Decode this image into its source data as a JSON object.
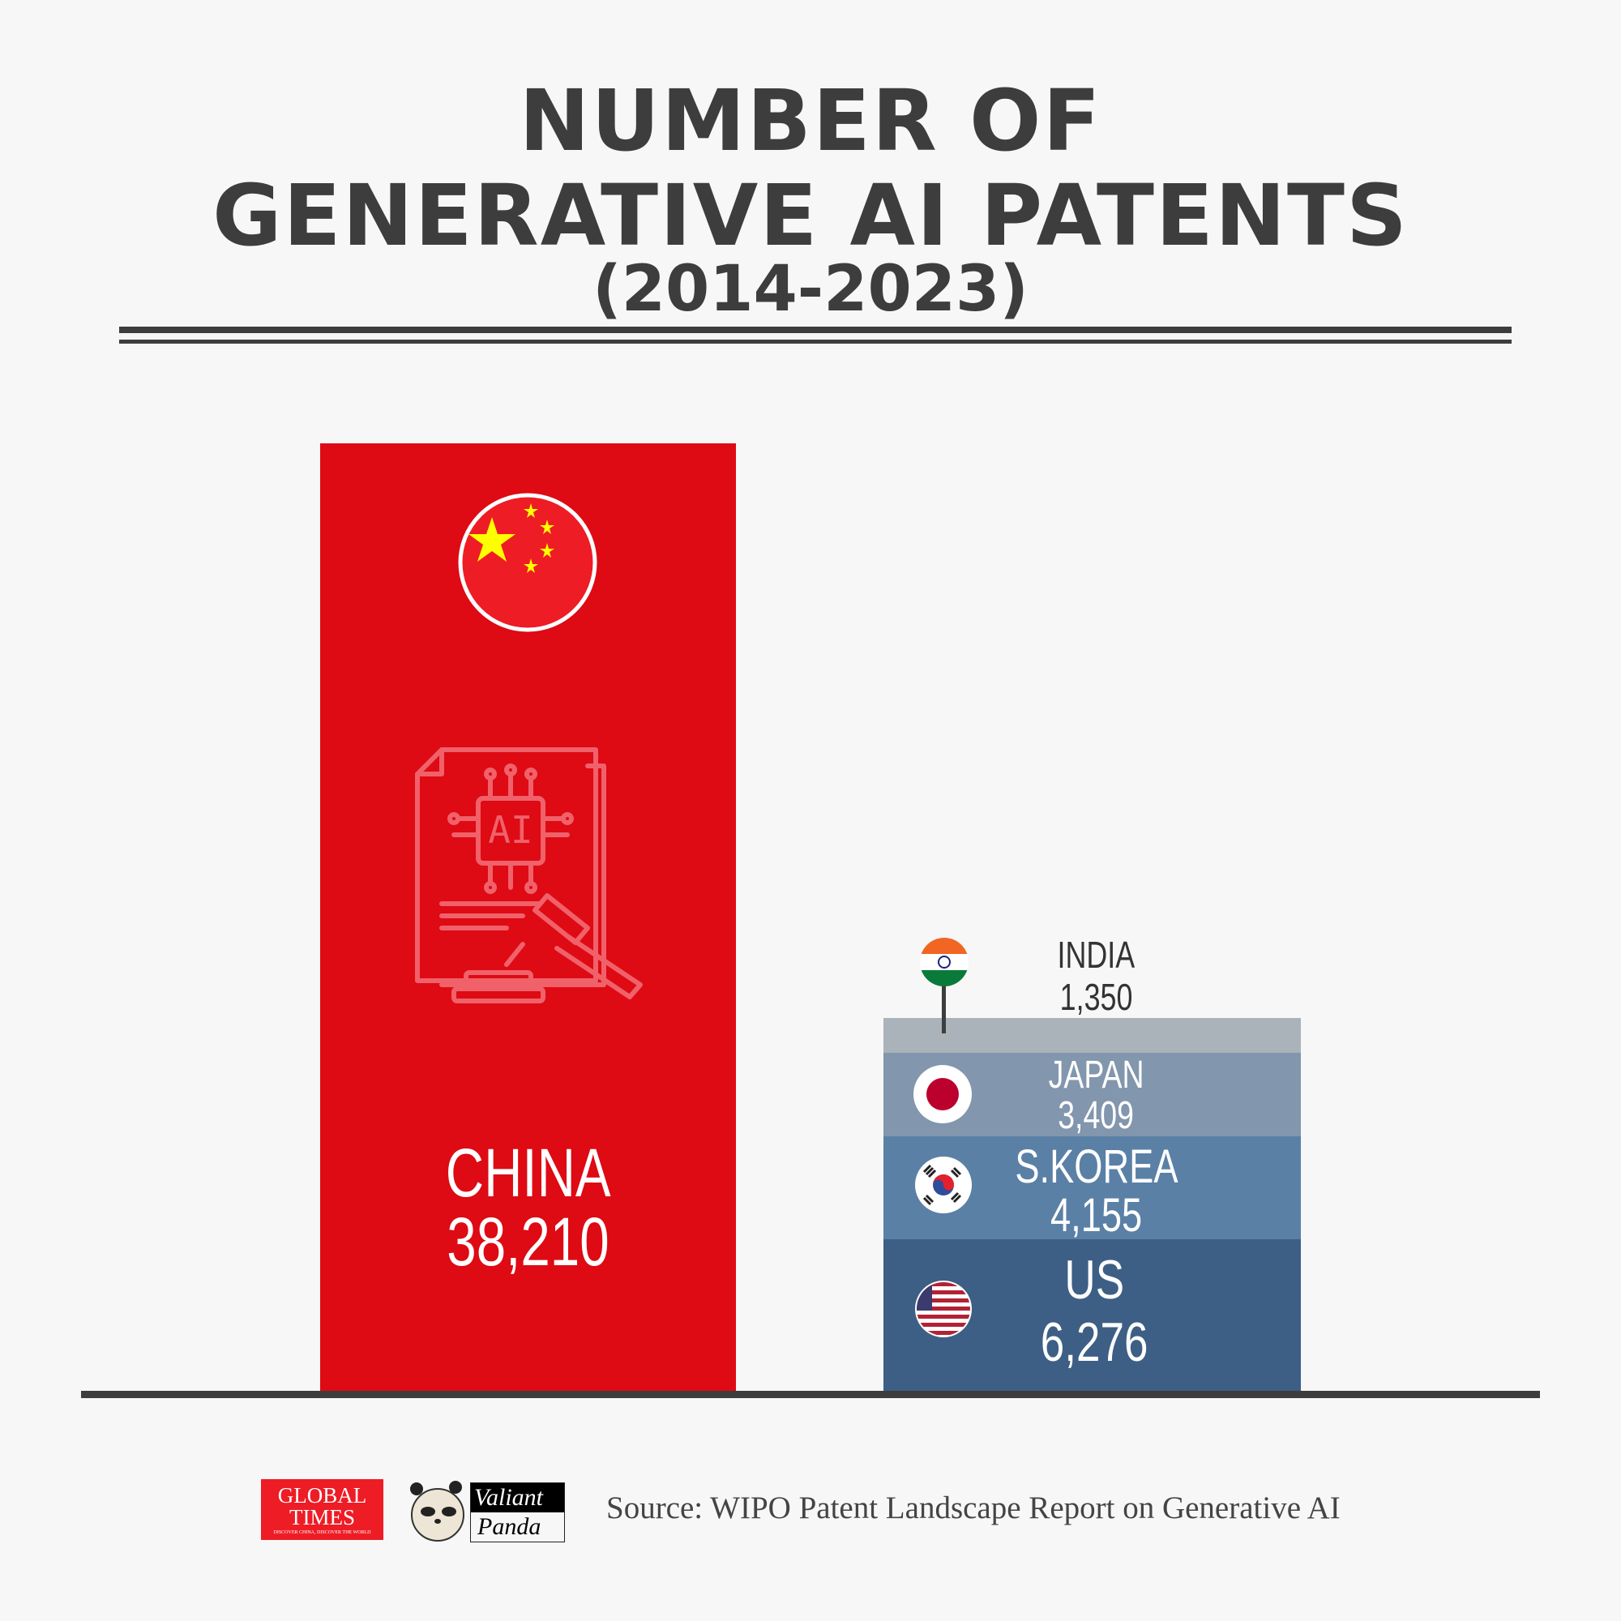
{
  "title": {
    "line1": "NUMBER OF",
    "line2": "GENERATIVE AI PATENTS",
    "line3": "(2014-2023)"
  },
  "chart_data": {
    "type": "bar",
    "title": "NUMBER OF GENERATIVE AI PATENTS (2014-2023)",
    "bars": [
      {
        "category": "CHINA",
        "value": 38210,
        "value_label": "38,210",
        "color": "#de0a14",
        "icon": "china-flag"
      },
      {
        "category": "stacked",
        "stack": [
          {
            "name": "US",
            "value": 6276,
            "value_label": "6,276",
            "color": "#3d5f85",
            "icon": "us-flag"
          },
          {
            "name": "S.KOREA",
            "value": 4155,
            "value_label": "4,155",
            "color": "#5a80a6",
            "icon": "south-korea-flag"
          },
          {
            "name": "JAPAN",
            "value": 3409,
            "value_label": "3,409",
            "color": "#8296ad",
            "icon": "japan-flag"
          },
          {
            "name": "INDIA",
            "value": 1350,
            "value_label": "1,350",
            "color": "#aab2ba",
            "icon": "india-flag"
          }
        ]
      }
    ],
    "grid": false,
    "axes_visible": false
  },
  "footer": {
    "source": "Source: WIPO Patent Landscape Report on Generative AI",
    "logo1": "GLOBAL TIMES",
    "logo1_tagline": "DISCOVER CHINA, DISCOVER THE WORLD",
    "logo2_line1": "Valiant",
    "logo2_line2": "Panda"
  },
  "colors": {
    "title": "#3d3d3d",
    "china": "#de0a14",
    "background": "#f7f7f7"
  }
}
